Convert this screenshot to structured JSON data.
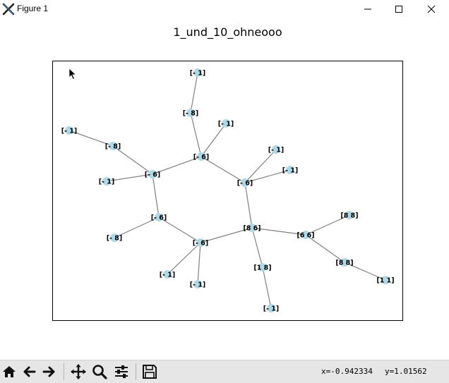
{
  "window": {
    "title": "Figure 1"
  },
  "plot": {
    "title": "1_und_10_ohneooo"
  },
  "graph": {
    "node_color": "#add8e6",
    "edge_color": "#808080",
    "nodes": [
      {
        "id": "n1",
        "label": "[- 1]"
      },
      {
        "id": "n2",
        "label": "[- 8]"
      },
      {
        "id": "n3",
        "label": "[- 1]"
      },
      {
        "id": "n4",
        "label": "[- 6]"
      },
      {
        "id": "n5",
        "label": "[- 1]"
      },
      {
        "id": "n6",
        "label": "[- 8]"
      },
      {
        "id": "n7",
        "label": "[- 6]"
      },
      {
        "id": "n8",
        "label": "[- 1]"
      },
      {
        "id": "n9",
        "label": "[- 1]"
      },
      {
        "id": "n10",
        "label": "[- 1]"
      },
      {
        "id": "n11",
        "label": "[- 6]"
      },
      {
        "id": "n12",
        "label": "[- 6]"
      },
      {
        "id": "n13",
        "label": "[8 8]"
      },
      {
        "id": "n14",
        "label": "[- 8]"
      },
      {
        "id": "n15",
        "label": "[8 6]"
      },
      {
        "id": "n16",
        "label": "[6 6]"
      },
      {
        "id": "n17",
        "label": "[- 6]"
      },
      {
        "id": "n18",
        "label": "[1 8]"
      },
      {
        "id": "n19",
        "label": "[8 8]"
      },
      {
        "id": "n20",
        "label": "[- 1]"
      },
      {
        "id": "n21",
        "label": "[1 1]"
      },
      {
        "id": "n22",
        "label": "[- 1]"
      },
      {
        "id": "n23",
        "label": "[- 1]"
      }
    ],
    "edges": [
      [
        "n1",
        "n2"
      ],
      [
        "n2",
        "n4"
      ],
      [
        "n3",
        "n4"
      ],
      [
        "n4",
        "n7"
      ],
      [
        "n4",
        "n11"
      ],
      [
        "n5",
        "n6"
      ],
      [
        "n6",
        "n7"
      ],
      [
        "n8",
        "n7"
      ],
      [
        "n7",
        "n12"
      ],
      [
        "n11",
        "n9"
      ],
      [
        "n11",
        "n10"
      ],
      [
        "n11",
        "n15"
      ],
      [
        "n12",
        "n14"
      ],
      [
        "n12",
        "n17"
      ],
      [
        "n17",
        "n15"
      ],
      [
        "n17",
        "n20"
      ],
      [
        "n17",
        "n22"
      ],
      [
        "n15",
        "n16"
      ],
      [
        "n15",
        "n18"
      ],
      [
        "n16",
        "n13"
      ],
      [
        "n16",
        "n19"
      ],
      [
        "n19",
        "n21"
      ],
      [
        "n18",
        "n23"
      ]
    ]
  },
  "toolbar": {
    "home": "home-icon",
    "back": "arrow-left-icon",
    "forward": "arrow-right-icon",
    "pan": "move-icon",
    "zoom": "zoom-icon",
    "configure": "sliders-icon",
    "save": "save-icon"
  },
  "status": {
    "x_readout": "x=-0.942334",
    "y_readout": "y=1.01562"
  }
}
